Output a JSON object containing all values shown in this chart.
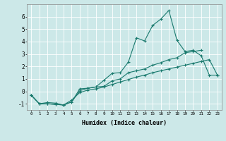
{
  "title": "",
  "xlabel": "Humidex (Indice chaleur)",
  "background_color": "#cce8e8",
  "grid_color": "#ffffff",
  "line_color": "#1a7a6e",
  "xlim": [
    -0.5,
    23.5
  ],
  "ylim": [
    -1.5,
    7.0
  ],
  "x": [
    0,
    1,
    2,
    3,
    4,
    5,
    6,
    7,
    8,
    9,
    10,
    11,
    12,
    13,
    14,
    15,
    16,
    17,
    18,
    19,
    20,
    21,
    22,
    23
  ],
  "line1": [
    -0.3,
    -1.0,
    -1.0,
    -1.05,
    -1.1,
    -0.85,
    0.2,
    0.25,
    0.35,
    0.9,
    1.45,
    1.5,
    2.35,
    4.3,
    4.05,
    5.3,
    5.8,
    6.5,
    4.1,
    3.2,
    3.3,
    2.85,
    1.3,
    1.3
  ],
  "line2": [
    -0.3,
    -1.0,
    -1.0,
    -1.05,
    -1.1,
    -0.85,
    0.05,
    0.25,
    0.35,
    0.4,
    0.85,
    1.0,
    1.5,
    1.65,
    1.8,
    2.1,
    2.3,
    2.55,
    2.7,
    3.1,
    3.2,
    3.3,
    null,
    null
  ],
  "line3": [
    -0.3,
    -1.0,
    -0.9,
    -0.95,
    -1.1,
    -0.7,
    -0.1,
    0.1,
    0.2,
    0.35,
    0.55,
    0.75,
    0.95,
    1.15,
    1.3,
    1.5,
    1.65,
    1.8,
    1.95,
    2.1,
    2.25,
    2.4,
    2.55,
    1.3
  ],
  "yticks": [
    -1,
    0,
    1,
    2,
    3,
    4,
    5,
    6
  ],
  "ytick_labels": [
    "-1",
    "0",
    "1",
    "2",
    "3",
    "4",
    "5",
    "6"
  ]
}
